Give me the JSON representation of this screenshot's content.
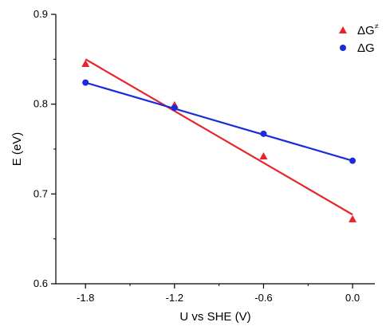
{
  "chart_data": {
    "type": "scatter",
    "xlabel": "U vs SHE (V)",
    "ylabel": "E (eV)",
    "xlim": [
      -2.0,
      0.15
    ],
    "ylim": [
      0.6,
      0.9
    ],
    "x_ticks": [
      -1.8,
      -1.2,
      -0.6,
      0.0
    ],
    "x_tick_labels": [
      "-1.8",
      "-1.2",
      "-0.6",
      "0.0"
    ],
    "y_ticks": [
      0.6,
      0.7,
      0.8,
      0.9
    ],
    "y_tick_labels": [
      "0.6",
      "0.7",
      "0.8",
      "0.9"
    ],
    "grid": false,
    "legend_position": "top-right",
    "series": [
      {
        "name": "ΔG≠",
        "name_main": "ΔG",
        "name_sup": "≠",
        "marker": "triangle",
        "color": "#e8232a",
        "x": [
          -1.8,
          -1.2,
          -0.6,
          0.0
        ],
        "y": [
          0.845,
          0.799,
          0.742,
          0.672
        ],
        "fit_line": [
          [
            -1.8,
            0.85
          ],
          [
            0.0,
            0.677
          ]
        ]
      },
      {
        "name": "ΔG",
        "name_main": "ΔG",
        "name_sup": "",
        "marker": "circle",
        "color": "#1a2bd8",
        "x": [
          -1.8,
          -1.2,
          -0.6,
          0.0
        ],
        "y": [
          0.824,
          0.796,
          0.767,
          0.737
        ],
        "fit_line": [
          [
            -1.8,
            0.824
          ],
          [
            0.0,
            0.737
          ]
        ]
      }
    ]
  }
}
